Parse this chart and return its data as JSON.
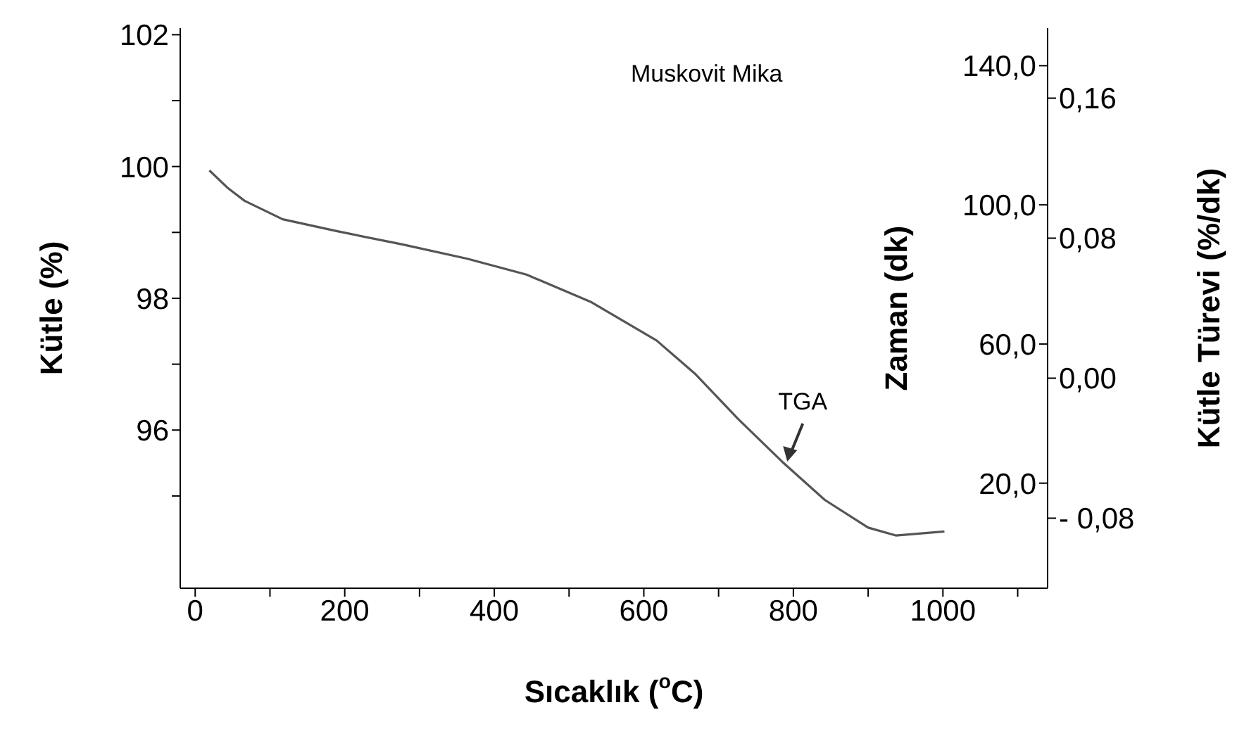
{
  "chart_data": {
    "type": "line",
    "xlabel": "Sıcaklık ($^{o}$C)",
    "ylabel": "Kütle (%)",
    "y2label": "Zaman (dk)",
    "y3label": "Kütle Türevi (%/dk)",
    "annotations": [
      "Muskovit Mika",
      {
        "text": "TGA",
        "x": 790,
        "y": 95.5
      }
    ],
    "x": [
      19,
      44,
      66,
      117,
      189,
      276,
      364,
      443,
      530,
      617,
      668,
      726,
      785,
      842,
      900,
      937,
      1002
    ],
    "series": [
      {
        "color": "#555555",
        "values": [
          99.94,
          99.67,
          99.48,
          99.2,
          99.02,
          98.82,
          98.6,
          98.36,
          97.94,
          97.36,
          96.86,
          96.17,
          95.52,
          94.94,
          94.52,
          94.4,
          94.46
        ]
      }
    ],
    "xlim": [
      -20,
      1140
    ],
    "xticks": [
      0,
      {
        "value": 100,
        "label": null
      },
      200,
      {
        "value": 300,
        "label": null
      },
      400,
      {
        "value": 500,
        "label": null
      },
      600,
      {
        "value": 700,
        "label": null
      },
      800,
      {
        "value": 900,
        "label": null
      },
      1000,
      {
        "value": 1100,
        "label": null
      }
    ],
    "ylim": [
      93.6,
      102.1
    ],
    "yticks": [
      {
        "value": 95,
        "label": null
      },
      96,
      {
        "value": 97,
        "label": null
      },
      98,
      {
        "value": 99,
        "label": null
      },
      100,
      {
        "value": 101,
        "label": null
      },
      102
    ],
    "y2lim": [
      -10.2,
      150.8
    ],
    "y2ticks": [
      {
        "value": 20,
        "label": "20,0"
      },
      {
        "value": 60,
        "label": "60,0"
      },
      {
        "value": 100,
        "label": "100,0"
      },
      {
        "value": 140,
        "label": "140,0"
      }
    ],
    "y3lim": [
      -0.12,
      0.2
    ],
    "y3ticks": [
      {
        "value": -0.08,
        "label": "- 0,08"
      },
      {
        "value": 0,
        "label": "0,00"
      },
      {
        "value": 0.08,
        "label": "0,08"
      },
      {
        "value": 0.16,
        "label": "0,16"
      }
    ],
    "grid": false,
    "legend": false,
    "marker": "none",
    "line_style": "solid"
  }
}
